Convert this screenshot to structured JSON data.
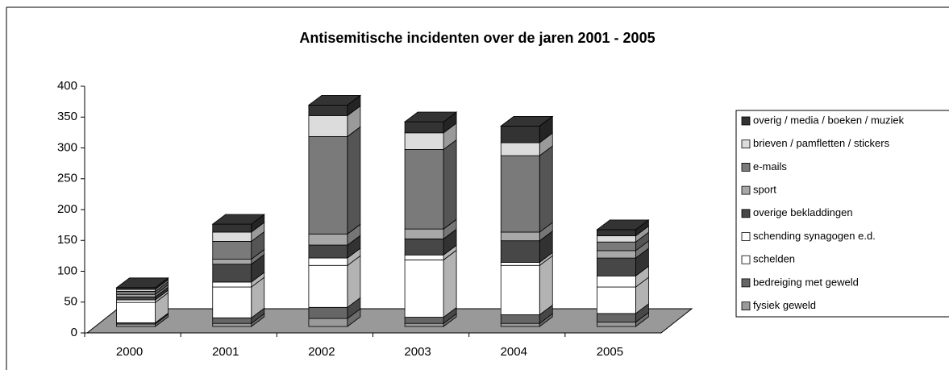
{
  "chart_data": {
    "type": "bar3d_stacked",
    "title": "Antisemitische incidenten over de jaren 2001 - 2005",
    "categories": [
      "2000",
      "2001",
      "2002",
      "2003",
      "2004",
      "2005"
    ],
    "ylim": [
      0,
      400
    ],
    "yticks": [
      0,
      50,
      100,
      150,
      200,
      250,
      300,
      350,
      400
    ],
    "series": [
      {
        "name": "fysiek geweld",
        "color": "#9a9a9a",
        "values": [
          4,
          5,
          13,
          5,
          5,
          7
        ]
      },
      {
        "name": "bedreiging met geweld",
        "color": "#666666",
        "values": [
          2,
          9,
          18,
          10,
          14,
          14
        ]
      },
      {
        "name": "schelden",
        "color": "#ffffff",
        "values": [
          33,
          50,
          68,
          93,
          80,
          43
        ]
      },
      {
        "name": "schending synagogen e.d.",
        "color": "#ffffff",
        "values": [
          4,
          8,
          12,
          8,
          5,
          18
        ]
      },
      {
        "name": "overige bekladdingen",
        "color": "#474747",
        "values": [
          5,
          29,
          21,
          26,
          35,
          29
        ]
      },
      {
        "name": "sport",
        "color": "#a8a8a8",
        "values": [
          4,
          8,
          18,
          16,
          14,
          12
        ]
      },
      {
        "name": "e-mails",
        "color": "#7a7a7a",
        "values": [
          5,
          29,
          158,
          129,
          124,
          14
        ]
      },
      {
        "name": "brieven / pamfletten / stickers",
        "color": "#dcdcdc",
        "values": [
          3,
          15,
          34,
          27,
          21,
          10
        ]
      },
      {
        "name": "overig / media / boeken / muziek",
        "color": "#333333",
        "values": [
          3,
          13,
          17,
          18,
          27,
          10
        ]
      }
    ]
  }
}
